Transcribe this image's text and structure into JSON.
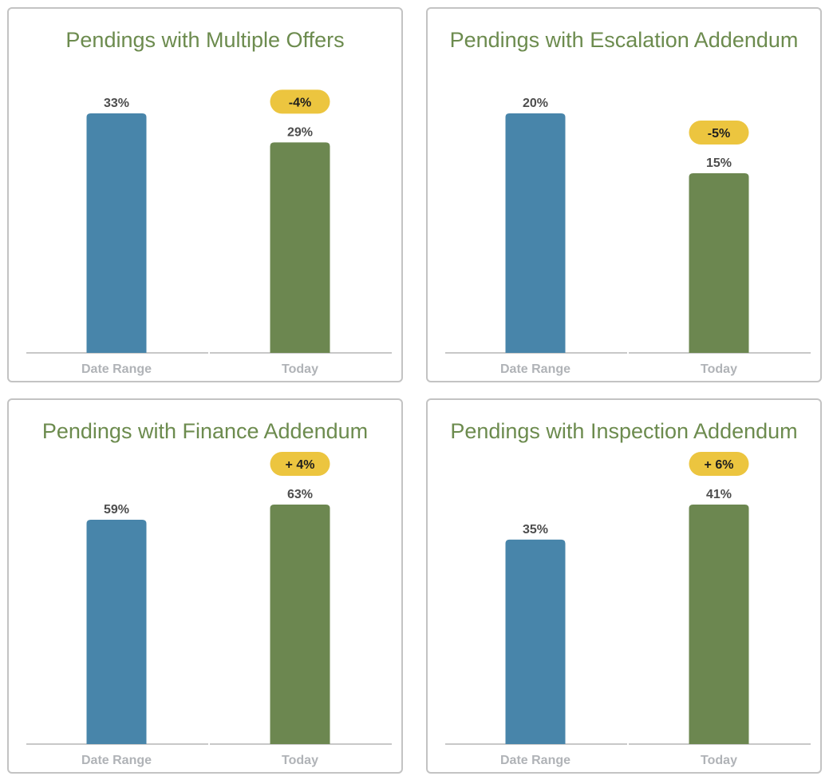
{
  "colors": {
    "date_range_bar": "#4885aa",
    "today_bar": "#6c8750",
    "badge": "#ecc53f",
    "title": "#6c8b4e",
    "axis_label": "#b0b3b7",
    "value_label": "#4d4d4d",
    "badge_text": "#1e1e1e"
  },
  "chart_data": [
    {
      "type": "bar",
      "title": "Pendings with Multiple Offers",
      "categories": [
        "Date Range",
        "Today"
      ],
      "values": [
        33,
        29
      ],
      "value_labels": [
        "33%",
        "29%"
      ],
      "change_label": "-4%",
      "ylim": [
        0,
        33
      ]
    },
    {
      "type": "bar",
      "title": "Pendings with Escalation Addendum",
      "categories": [
        "Date Range",
        "Today"
      ],
      "values": [
        20,
        15
      ],
      "value_labels": [
        "20%",
        "15%"
      ],
      "change_label": "-5%",
      "ylim": [
        0,
        20
      ]
    },
    {
      "type": "bar",
      "title": "Pendings with Finance Addendum",
      "categories": [
        "Date Range",
        "Today"
      ],
      "values": [
        59,
        63
      ],
      "value_labels": [
        "59%",
        "63%"
      ],
      "change_label": "+ 4%",
      "ylim": [
        0,
        63
      ]
    },
    {
      "type": "bar",
      "title": "Pendings with Inspection Addendum",
      "categories": [
        "Date Range",
        "Today"
      ],
      "values": [
        35,
        41
      ],
      "value_labels": [
        "35%",
        "41%"
      ],
      "change_label": "+ 6%",
      "ylim": [
        0,
        41
      ]
    }
  ]
}
